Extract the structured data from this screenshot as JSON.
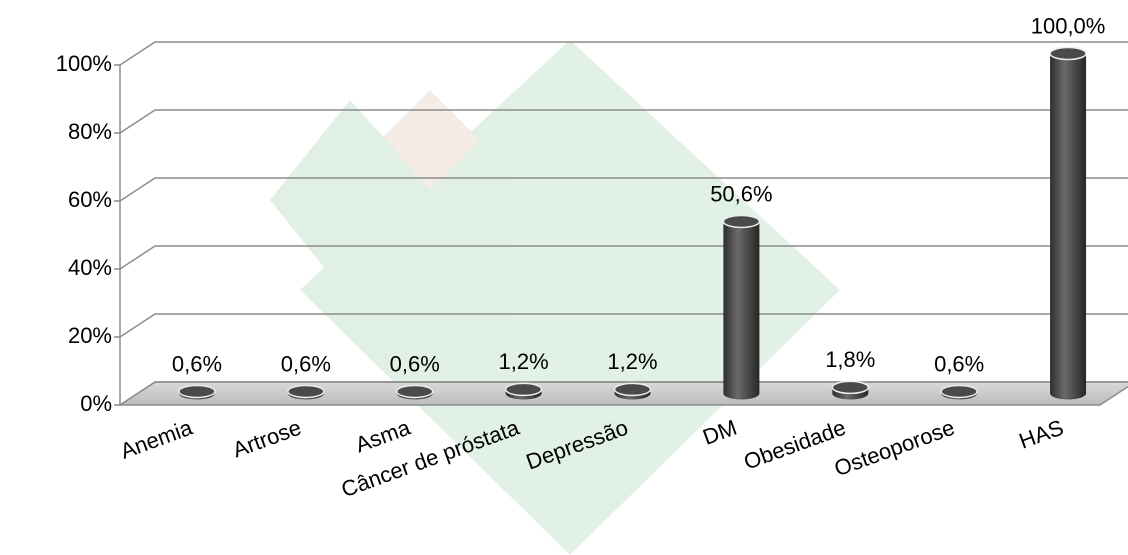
{
  "chart_data": {
    "type": "bar3d",
    "categories": [
      "Anemia",
      "Artrose",
      "Asma",
      "Câncer de próstata",
      "Depressão",
      "DM",
      "Obesidade",
      "Osteoporose",
      "HAS"
    ],
    "values": [
      0.6,
      0.6,
      0.6,
      1.2,
      1.2,
      50.6,
      1.8,
      0.6,
      100
    ],
    "value_labels": [
      "0,6%",
      "0,6%",
      "0,6%",
      "1,2%",
      "1,2%",
      "50,6%",
      "1,8%",
      "0,6%",
      "100,0%"
    ],
    "color": "#555555",
    "ylim": [
      0,
      100
    ],
    "yticks": [
      {
        "value": 0,
        "label": "0%"
      },
      {
        "value": 20,
        "label": "20%"
      },
      {
        "value": 40,
        "label": "40%"
      },
      {
        "value": 60,
        "label": "60%"
      },
      {
        "value": 80,
        "label": "80%"
      },
      {
        "value": 100,
        "label": "100%"
      }
    ],
    "grid": true
  }
}
